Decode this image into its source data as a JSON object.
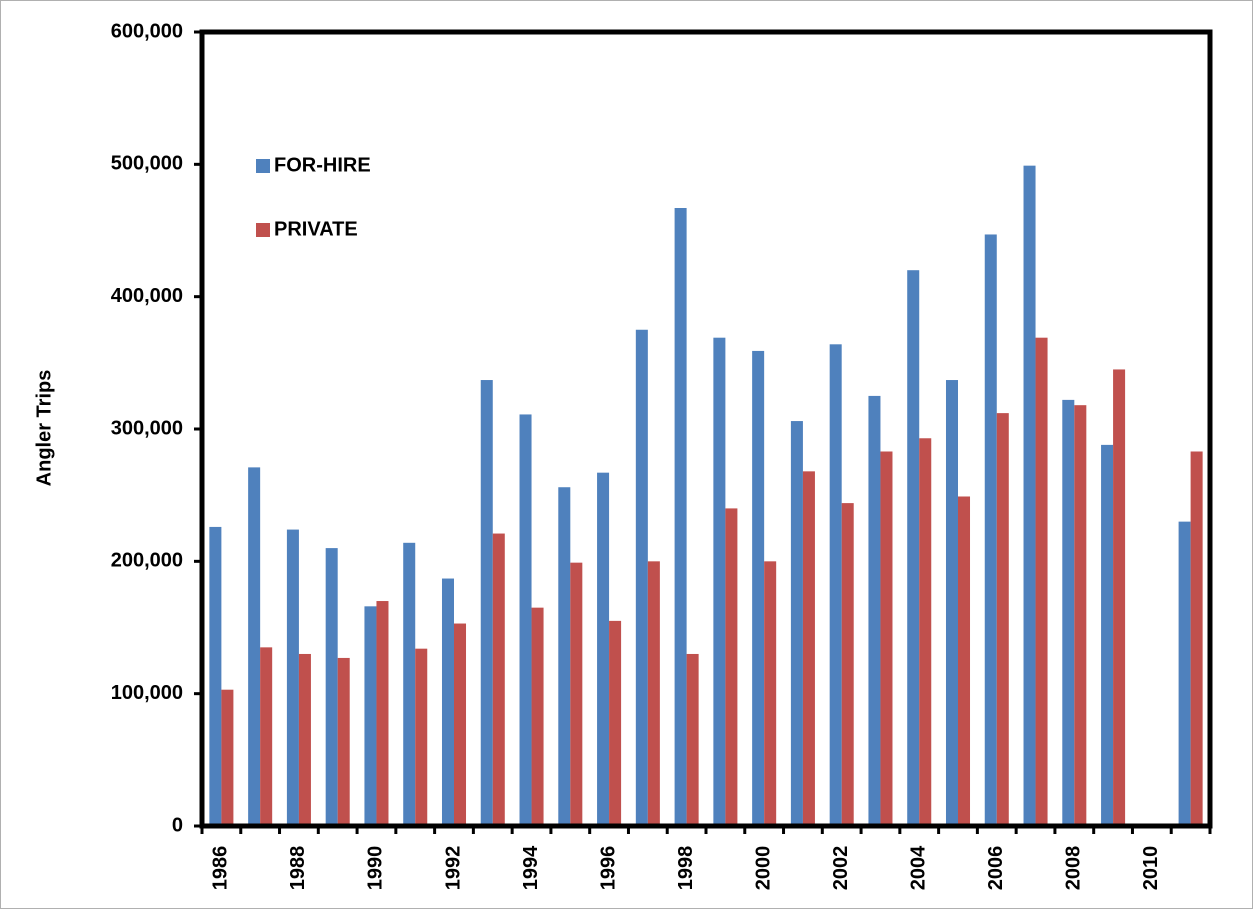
{
  "chart_data": {
    "type": "bar",
    "y_label": "Angler Trips",
    "categories": [
      "1986",
      null,
      "1988",
      null,
      "1990",
      null,
      "1992",
      null,
      "1994",
      null,
      "1996",
      null,
      "1998",
      null,
      "2000",
      null,
      "2002",
      null,
      "2004",
      null,
      "2006",
      null,
      "2008",
      null,
      "2010",
      null
    ],
    "series": [
      {
        "name": "FOR-HIRE",
        "color": "#4f81bd",
        "values": [
          226000,
          271000,
          224000,
          210000,
          166000,
          214000,
          187000,
          337000,
          311000,
          256000,
          267000,
          375000,
          467000,
          369000,
          359000,
          306000,
          364000,
          325000,
          420000,
          337000,
          447000,
          499000,
          322000,
          288000,
          null,
          230000
        ]
      },
      {
        "name": "PRIVATE",
        "color": "#c0504d",
        "values": [
          103000,
          135000,
          130000,
          127000,
          170000,
          134000,
          153000,
          221000,
          165000,
          199000,
          155000,
          200000,
          130000,
          240000,
          200000,
          268000,
          244000,
          283000,
          293000,
          249000,
          312000,
          369000,
          318000,
          345000,
          null,
          283000
        ]
      }
    ],
    "ylim": [
      0,
      600000
    ],
    "yticks": [
      0,
      {
        "value": 100000,
        "label": "100,000"
      },
      {
        "value": 200000,
        "label": "200,000"
      },
      {
        "value": 300000,
        "label": "300,000"
      },
      {
        "value": 400000,
        "label": "400,000"
      },
      {
        "value": 500000,
        "label": "500,000"
      },
      {
        "value": 600000,
        "label": "600,000"
      }
    ],
    "grid": false,
    "legend": "upper left"
  }
}
